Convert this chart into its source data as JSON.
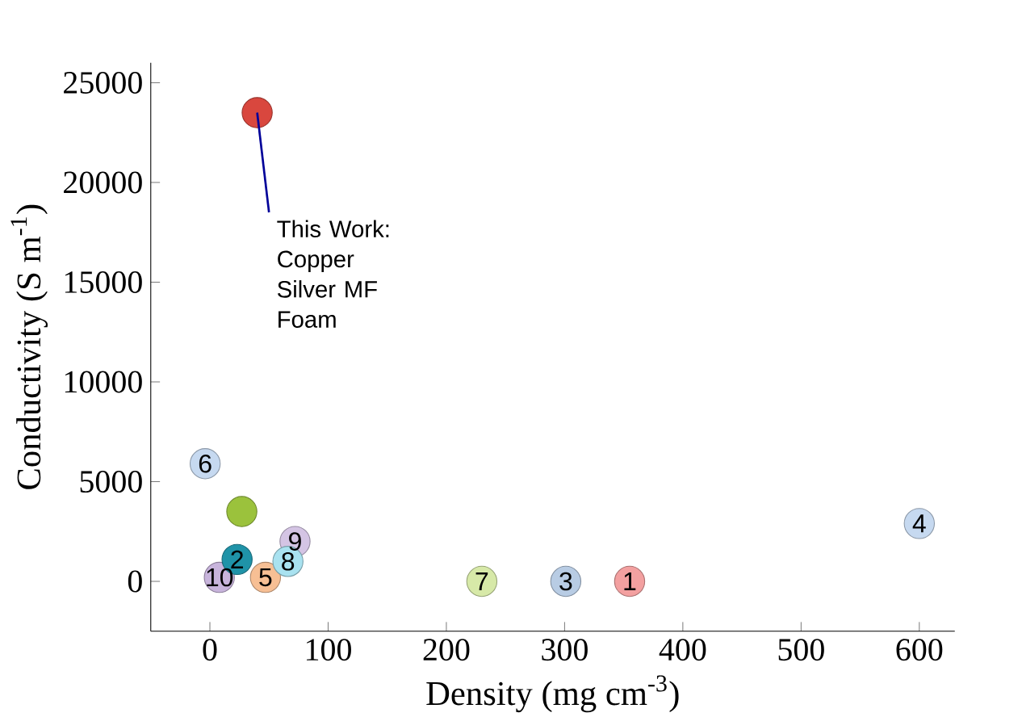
{
  "chart_data": {
    "type": "scatter",
    "xlabel": "Density (mg cm$^{-3}$)",
    "ylabel": "Conductivity (S m$^{-1}$)",
    "x": [
      40,
      27,
      301,
      47,
      8,
      72,
      -4,
      23,
      66,
      230,
      355,
      600
    ],
    "values": [
      23500,
      3500,
      0,
      200,
      200,
      2000,
      5900,
      1100,
      1000,
      0,
      0,
      2900
    ],
    "colors": [
      "#d9473e",
      "#9bc23c",
      "#b8cce4",
      "#f7bf94",
      "#c8b4dc",
      "#d4c4e4",
      "#c6d9f0",
      "#1f93a8",
      "#a9e2f0",
      "#d7e9a8",
      "#f3a0a0",
      "#c6d9f0"
    ],
    "marker": "circle",
    "grid": false,
    "xlim": [
      -50,
      630
    ],
    "ylim": [
      -2500,
      26000
    ],
    "xticks": [
      0,
      100,
      200,
      300,
      400,
      500,
      600
    ],
    "yticks": [
      0,
      5000,
      10000,
      15000,
      20000,
      25000
    ],
    "annotations": [
      {
        "text": "This Work: Copper Silver MF Foam",
        "x": 40,
        "y": 23500
      },
      {
        "text": "3",
        "x": 301,
        "y": 0
      },
      {
        "text": "5",
        "x": 47,
        "y": 200
      },
      {
        "text": "10",
        "x": 8,
        "y": 200
      },
      {
        "text": "9",
        "x": 72,
        "y": 2000
      },
      {
        "text": "6",
        "x": -4,
        "y": 5900
      },
      {
        "text": "2",
        "x": 23,
        "y": 1100
      },
      {
        "text": "8",
        "x": 66,
        "y": 1000
      },
      {
        "text": "7",
        "x": 230,
        "y": 0
      },
      {
        "text": "1",
        "x": 355,
        "y": 0
      },
      {
        "text": "4",
        "x": 600,
        "y": 2900
      }
    ]
  }
}
